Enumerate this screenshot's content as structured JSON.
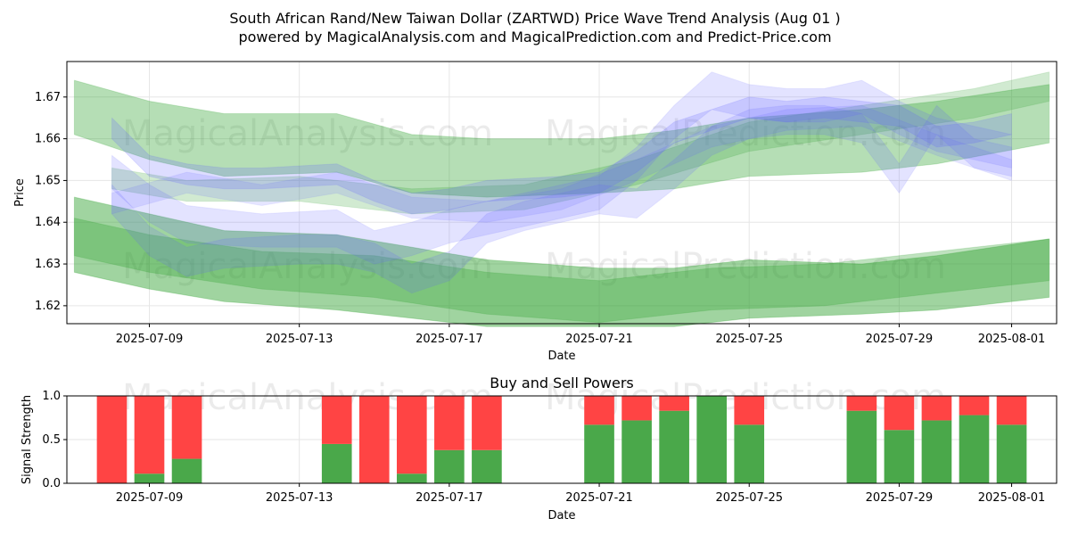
{
  "title_line1": "South African Rand/New Taiwan Dollar (ZARTWD) Price Wave Trend Analysis (Aug 01 )",
  "title_line2": "powered by MagicalAnalysis.com and MagicalPrediction.com and Predict-Price.com",
  "watermark_text_1": "MagicalAnalysis.com",
  "watermark_text_2": "MagicalPrediction.com",
  "colors": {
    "green_band": "#2ca02c",
    "blue_band": "#6464ff",
    "buy": "#4aa84a",
    "sell": "#ff4444"
  },
  "chart_data": [
    {
      "type": "area",
      "title": "",
      "xlabel": "Date",
      "ylabel": "Price",
      "ylim": [
        1.6157,
        1.6785
      ],
      "yticks": [
        1.62,
        1.63,
        1.64,
        1.65,
        1.66,
        1.67
      ],
      "ytick_labels": [
        "1.62",
        "1.63",
        "1.64",
        "1.65",
        "1.66",
        "1.67"
      ],
      "xlim": [
        6.8,
        33.2
      ],
      "xticks": [
        9,
        13,
        17,
        21,
        25,
        29,
        32
      ],
      "xtick_labels": [
        "2025-07-09",
        "2025-07-13",
        "2025-07-17",
        "2025-07-21",
        "2025-07-25",
        "2025-07-29",
        "2025-08-01"
      ],
      "grid": true,
      "series": [
        {
          "name": "green-upper-wave",
          "color": "green",
          "opacity": 0.35,
          "x": [
            7,
            9,
            11,
            14,
            16,
            18,
            21,
            23,
            25,
            28,
            30,
            33
          ],
          "upper": [
            1.674,
            1.669,
            1.666,
            1.666,
            1.661,
            1.66,
            1.66,
            1.662,
            1.665,
            1.667,
            1.669,
            1.673
          ],
          "lower": [
            1.661,
            1.655,
            1.651,
            1.652,
            1.647,
            1.646,
            1.647,
            1.648,
            1.651,
            1.652,
            1.654,
            1.659
          ]
        },
        {
          "name": "green-upper-wave-2",
          "color": "green",
          "opacity": 0.22,
          "x": [
            8,
            10,
            13,
            16,
            19,
            22,
            25,
            28,
            31,
            33
          ],
          "upper": [
            1.653,
            1.65,
            1.651,
            1.648,
            1.649,
            1.655,
            1.664,
            1.668,
            1.672,
            1.676
          ],
          "lower": [
            1.648,
            1.645,
            1.645,
            1.642,
            1.643,
            1.649,
            1.657,
            1.661,
            1.665,
            1.669
          ]
        },
        {
          "name": "green-lower-wave",
          "color": "green",
          "opacity": 0.45,
          "x": [
            7,
            9,
            11,
            14,
            16,
            18,
            21,
            23,
            25,
            28,
            30,
            33
          ],
          "upper": [
            1.646,
            1.642,
            1.638,
            1.637,
            1.634,
            1.631,
            1.629,
            1.629,
            1.631,
            1.63,
            1.632,
            1.636
          ],
          "lower": [
            1.628,
            1.624,
            1.621,
            1.619,
            1.617,
            1.615,
            1.615,
            1.615,
            1.617,
            1.618,
            1.619,
            1.622
          ]
        },
        {
          "name": "green-lower-wave-2",
          "color": "green",
          "opacity": 0.3,
          "x": [
            7,
            9,
            12,
            15,
            18,
            21,
            24,
            27,
            30,
            33
          ],
          "upper": [
            1.641,
            1.637,
            1.633,
            1.632,
            1.628,
            1.626,
            1.629,
            1.63,
            1.633,
            1.636
          ],
          "lower": [
            1.632,
            1.628,
            1.624,
            1.622,
            1.618,
            1.616,
            1.619,
            1.62,
            1.623,
            1.626
          ]
        },
        {
          "name": "blue-wave-1",
          "color": "blue",
          "opacity": 0.22,
          "x": [
            8,
            9,
            10,
            11,
            12,
            14,
            15,
            16,
            17,
            18,
            20,
            21,
            22,
            23,
            24,
            25,
            26,
            27,
            28,
            29,
            30,
            31,
            32
          ],
          "upper": [
            1.665,
            1.656,
            1.654,
            1.653,
            1.653,
            1.654,
            1.65,
            1.647,
            1.648,
            1.65,
            1.651,
            1.652,
            1.657,
            1.664,
            1.667,
            1.67,
            1.669,
            1.67,
            1.669,
            1.668,
            1.663,
            1.664,
            1.666
          ],
          "lower": [
            1.66,
            1.651,
            1.649,
            1.648,
            1.648,
            1.649,
            1.645,
            1.642,
            1.643,
            1.645,
            1.646,
            1.647,
            1.652,
            1.659,
            1.662,
            1.665,
            1.664,
            1.665,
            1.664,
            1.663,
            1.658,
            1.659,
            1.661
          ]
        },
        {
          "name": "blue-wave-2",
          "color": "blue",
          "opacity": 0.18,
          "x": [
            8,
            9,
            10,
            12,
            14,
            15,
            16,
            17,
            18,
            20,
            21,
            22,
            23,
            24,
            25,
            26,
            27,
            28,
            29,
            30,
            32
          ],
          "upper": [
            1.656,
            1.649,
            1.644,
            1.642,
            1.643,
            1.638,
            1.64,
            1.643,
            1.645,
            1.649,
            1.651,
            1.658,
            1.668,
            1.676,
            1.673,
            1.672,
            1.672,
            1.674,
            1.669,
            1.665,
            1.661
          ],
          "lower": [
            1.648,
            1.64,
            1.635,
            1.634,
            1.634,
            1.63,
            1.632,
            1.635,
            1.637,
            1.641,
            1.643,
            1.65,
            1.66,
            1.667,
            1.665,
            1.664,
            1.664,
            1.666,
            1.661,
            1.657,
            1.653
          ]
        },
        {
          "name": "blue-wave-3",
          "color": "blue",
          "opacity": 0.18,
          "x": [
            8,
            9,
            10,
            11,
            13,
            14,
            15,
            16,
            17,
            18,
            19,
            21,
            22,
            23,
            24,
            25,
            26,
            27,
            28,
            29,
            30,
            31,
            32
          ],
          "upper": [
            1.649,
            1.639,
            1.634,
            1.636,
            1.637,
            1.637,
            1.635,
            1.63,
            1.633,
            1.642,
            1.645,
            1.649,
            1.648,
            1.655,
            1.663,
            1.667,
            1.668,
            1.668,
            1.666,
            1.654,
            1.668,
            1.66,
            1.658
          ],
          "lower": [
            1.642,
            1.632,
            1.627,
            1.629,
            1.63,
            1.63,
            1.628,
            1.623,
            1.626,
            1.635,
            1.638,
            1.642,
            1.641,
            1.648,
            1.656,
            1.66,
            1.661,
            1.661,
            1.659,
            1.647,
            1.661,
            1.653,
            1.651
          ]
        },
        {
          "name": "blue-wave-4",
          "color": "blue",
          "opacity": 0.16,
          "x": [
            8,
            10,
            12,
            14,
            16,
            18,
            20,
            22,
            24,
            26,
            28,
            30,
            32
          ],
          "upper": [
            1.647,
            1.652,
            1.649,
            1.652,
            1.646,
            1.645,
            1.648,
            1.655,
            1.663,
            1.667,
            1.668,
            1.661,
            1.655
          ],
          "lower": [
            1.642,
            1.647,
            1.644,
            1.647,
            1.641,
            1.64,
            1.643,
            1.65,
            1.658,
            1.662,
            1.663,
            1.656,
            1.65
          ]
        }
      ]
    },
    {
      "type": "bar",
      "title": "Buy and Sell Powers",
      "xlabel": "Date",
      "ylabel": "Signal Strength",
      "ylim": [
        0,
        1.0
      ],
      "yticks": [
        0,
        0.5,
        1.0
      ],
      "ytick_labels": [
        "0.0",
        "0.5",
        "1.0"
      ],
      "xlim": [
        6.8,
        33.2
      ],
      "xticks": [
        9,
        13,
        17,
        21,
        25,
        29,
        32
      ],
      "xtick_labels": [
        "2025-07-09",
        "2025-07-13",
        "2025-07-17",
        "2025-07-21",
        "2025-07-25",
        "2025-07-29",
        "2025-08-01"
      ],
      "grid": true,
      "categories": [
        "2025-07-08",
        "2025-07-09",
        "2025-07-10",
        "2025-07-14",
        "2025-07-15",
        "2025-07-16",
        "2025-07-17",
        "2025-07-18",
        "2025-07-21",
        "2025-07-22",
        "2025-07-23",
        "2025-07-24",
        "2025-07-25",
        "2025-07-28",
        "2025-07-29",
        "2025-07-30",
        "2025-07-31",
        "2025-08-01"
      ],
      "x": [
        8,
        9,
        10,
        14,
        15,
        16,
        17,
        18,
        21,
        22,
        23,
        24,
        25,
        28,
        29,
        30,
        31,
        32
      ],
      "series": [
        {
          "name": "Buy",
          "values": [
            0.0,
            0.11,
            0.28,
            0.45,
            0.0,
            0.11,
            0.38,
            0.38,
            0.67,
            0.72,
            0.83,
            1.0,
            0.67,
            0.83,
            0.61,
            0.72,
            0.78,
            0.67
          ]
        },
        {
          "name": "Sell",
          "values": [
            1.0,
            0.89,
            0.72,
            0.55,
            1.0,
            0.89,
            0.62,
            0.62,
            0.33,
            0.28,
            0.17,
            0.0,
            0.33,
            0.17,
            0.39,
            0.28,
            0.22,
            0.33
          ]
        }
      ]
    }
  ]
}
